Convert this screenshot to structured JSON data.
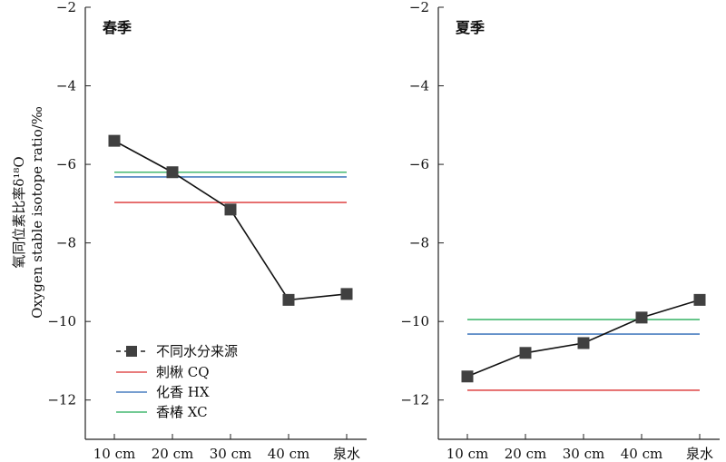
{
  "chart_data": [
    {
      "type": "line",
      "title": "春季",
      "ylabel": [
        "氧同位素比率δ¹⁸O",
        "Oxygen stable isotope ratio/‰"
      ],
      "categories": [
        "10 cm",
        "20 cm",
        "30 cm",
        "40 cm",
        "泉水"
      ],
      "ylim": [
        -13,
        -2
      ],
      "yticks": [
        "−2",
        "−4",
        "−6",
        "−8",
        "−10",
        "−12"
      ],
      "series": [
        {
          "name": "不同水分来源",
          "values": [
            -5.4,
            -6.2,
            -7.15,
            -9.45,
            -9.3
          ],
          "color": "#404040",
          "marker": "square"
        },
        {
          "name": "刺楸 CQ",
          "values": [
            -6.97,
            -6.97,
            -6.97,
            -6.97,
            -6.97
          ],
          "color": "#e05050"
        },
        {
          "name": "化香 HX",
          "values": [
            -6.32,
            -6.32,
            -6.32,
            -6.32,
            -6.32
          ],
          "color": "#4a7fc1"
        },
        {
          "name": "香椿 XC",
          "values": [
            -6.2,
            -6.2,
            -6.2,
            -6.2,
            -6.2
          ],
          "color": "#45b870"
        }
      ],
      "legend": "bottom-left"
    },
    {
      "type": "line",
      "title": "夏季",
      "categories": [
        "10 cm",
        "20 cm",
        "30 cm",
        "40 cm",
        "泉水"
      ],
      "ylim": [
        -13,
        -2
      ],
      "yticks": [
        "−2",
        "−4",
        "−6",
        "−8",
        "−10",
        "−12"
      ],
      "series": [
        {
          "name": "不同水分来源",
          "values": [
            -11.4,
            -10.8,
            -10.55,
            -9.9,
            -9.45
          ],
          "color": "#404040",
          "marker": "square"
        },
        {
          "name": "刺楸 CQ",
          "values": [
            -11.75,
            -11.75,
            -11.75,
            -11.75,
            -11.75
          ],
          "color": "#e05050"
        },
        {
          "name": "化香 HX",
          "values": [
            -10.32,
            -10.32,
            -10.32,
            -10.32,
            -10.32
          ],
          "color": "#4a7fc1"
        },
        {
          "name": "香椿 XC",
          "values": [
            -9.95,
            -9.95,
            -9.95,
            -9.95,
            -9.95
          ],
          "color": "#45b870"
        }
      ]
    }
  ]
}
